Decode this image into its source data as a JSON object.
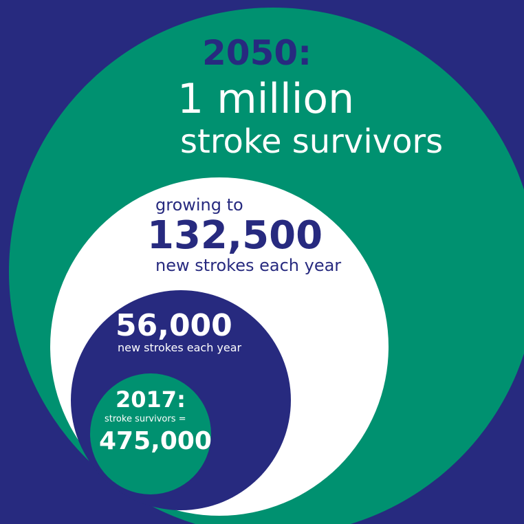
{
  "colors": {
    "background": "#272a7f",
    "green": "#009170",
    "white": "#ffffff",
    "navy": "#272a7f"
  },
  "outer": {
    "year": "2050:",
    "amount": "1 million",
    "label": "stroke survivors"
  },
  "growth": {
    "intro": "growing to",
    "amount": "132,500",
    "label": "new strokes each year"
  },
  "current": {
    "amount": "56,000",
    "label": "new strokes each year"
  },
  "baseline": {
    "year": "2017:",
    "label": "stroke survivors =",
    "amount": "475,000"
  }
}
